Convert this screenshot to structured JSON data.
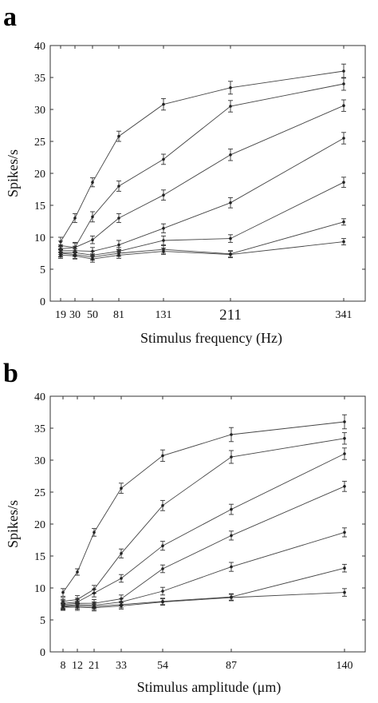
{
  "chart_data": [
    {
      "panel": "a",
      "type": "line",
      "title": "",
      "xlabel": "Stimulus frequency (Hz)",
      "ylabel": "Spikes/s",
      "ylim": [
        0,
        40
      ],
      "yticks": [
        0,
        5,
        10,
        15,
        20,
        25,
        30,
        35,
        40
      ],
      "xticks": [
        "19",
        "30",
        "50",
        "81",
        "131",
        "211",
        "341"
      ],
      "x": [
        19,
        30,
        50,
        81,
        131,
        211,
        341
      ],
      "grid": false,
      "legend": "none",
      "series": [
        {
          "values": [
            9.3,
            13.0,
            18.6,
            25.8,
            30.8,
            33.4,
            36.0
          ],
          "err": [
            0.7,
            0.7,
            0.7,
            0.8,
            0.9,
            1.0,
            1.1
          ]
        },
        {
          "values": [
            8.7,
            8.4,
            13.2,
            18.0,
            22.2,
            30.5,
            34.0
          ],
          "err": [
            0.7,
            0.8,
            0.8,
            0.8,
            0.8,
            0.9,
            1.0
          ]
        },
        {
          "values": [
            8.2,
            8.4,
            9.6,
            13.0,
            16.6,
            22.9,
            30.6
          ],
          "err": [
            0.6,
            0.7,
            0.6,
            0.7,
            0.8,
            0.9,
            0.9
          ]
        },
        {
          "values": [
            7.9,
            7.9,
            7.8,
            8.8,
            11.4,
            15.4,
            25.5
          ],
          "err": [
            0.6,
            0.7,
            0.6,
            0.7,
            0.7,
            0.8,
            0.9
          ]
        },
        {
          "values": [
            7.6,
            7.6,
            7.2,
            7.8,
            9.5,
            9.8,
            18.6
          ],
          "err": [
            0.6,
            0.6,
            0.6,
            0.6,
            0.7,
            0.6,
            0.8
          ]
        },
        {
          "values": [
            7.5,
            7.3,
            6.9,
            7.5,
            8.1,
            7.4,
            12.4
          ],
          "err": [
            0.6,
            0.6,
            0.5,
            0.5,
            0.6,
            0.5,
            0.5
          ]
        },
        {
          "values": [
            7.2,
            7.1,
            6.6,
            7.2,
            7.8,
            7.3,
            9.3
          ],
          "err": [
            0.5,
            0.5,
            0.5,
            0.5,
            0.5,
            0.5,
            0.5
          ]
        }
      ]
    },
    {
      "panel": "b",
      "type": "line",
      "title": "",
      "xlabel": "Stimulus amplitude (μm)",
      "ylabel": "Spikes/s",
      "ylim": [
        0,
        40
      ],
      "yticks": [
        0,
        5,
        10,
        15,
        20,
        25,
        30,
        35,
        40
      ],
      "xticks": [
        "8",
        "12",
        "21",
        "33",
        "54",
        "87",
        "140"
      ],
      "x": [
        8,
        12,
        21,
        33,
        54,
        87,
        140
      ],
      "grid": false,
      "legend": "none",
      "series": [
        {
          "values": [
            9.3,
            12.5,
            18.7,
            25.6,
            30.7,
            34.0,
            36.0
          ],
          "err": [
            0.6,
            0.5,
            0.6,
            0.8,
            0.9,
            1.1,
            1.1
          ]
        },
        {
          "values": [
            7.9,
            8.2,
            9.8,
            15.4,
            22.9,
            30.5,
            33.4
          ],
          "err": [
            0.6,
            0.6,
            0.6,
            0.7,
            0.8,
            1.0,
            0.9
          ]
        },
        {
          "values": [
            7.6,
            7.8,
            9.2,
            11.5,
            16.6,
            22.3,
            31.0
          ],
          "err": [
            0.6,
            0.6,
            0.6,
            0.6,
            0.7,
            0.8,
            0.9
          ]
        },
        {
          "values": [
            7.4,
            7.6,
            7.6,
            8.3,
            13.0,
            18.2,
            25.9
          ],
          "err": [
            0.6,
            0.6,
            0.6,
            0.6,
            0.6,
            0.7,
            0.8
          ]
        },
        {
          "values": [
            7.2,
            7.4,
            7.3,
            7.8,
            9.5,
            13.3,
            18.7
          ],
          "err": [
            0.5,
            0.5,
            0.5,
            0.5,
            0.6,
            0.7,
            0.7
          ]
        },
        {
          "values": [
            7.1,
            7.2,
            7.1,
            7.4,
            7.9,
            8.6,
            13.1
          ],
          "err": [
            0.5,
            0.5,
            0.5,
            0.5,
            0.5,
            0.5,
            0.6
          ]
        },
        {
          "values": [
            7.0,
            7.0,
            6.9,
            7.2,
            7.8,
            8.5,
            9.3
          ],
          "err": [
            0.5,
            0.5,
            0.5,
            0.5,
            0.5,
            0.5,
            0.6
          ]
        }
      ]
    }
  ]
}
